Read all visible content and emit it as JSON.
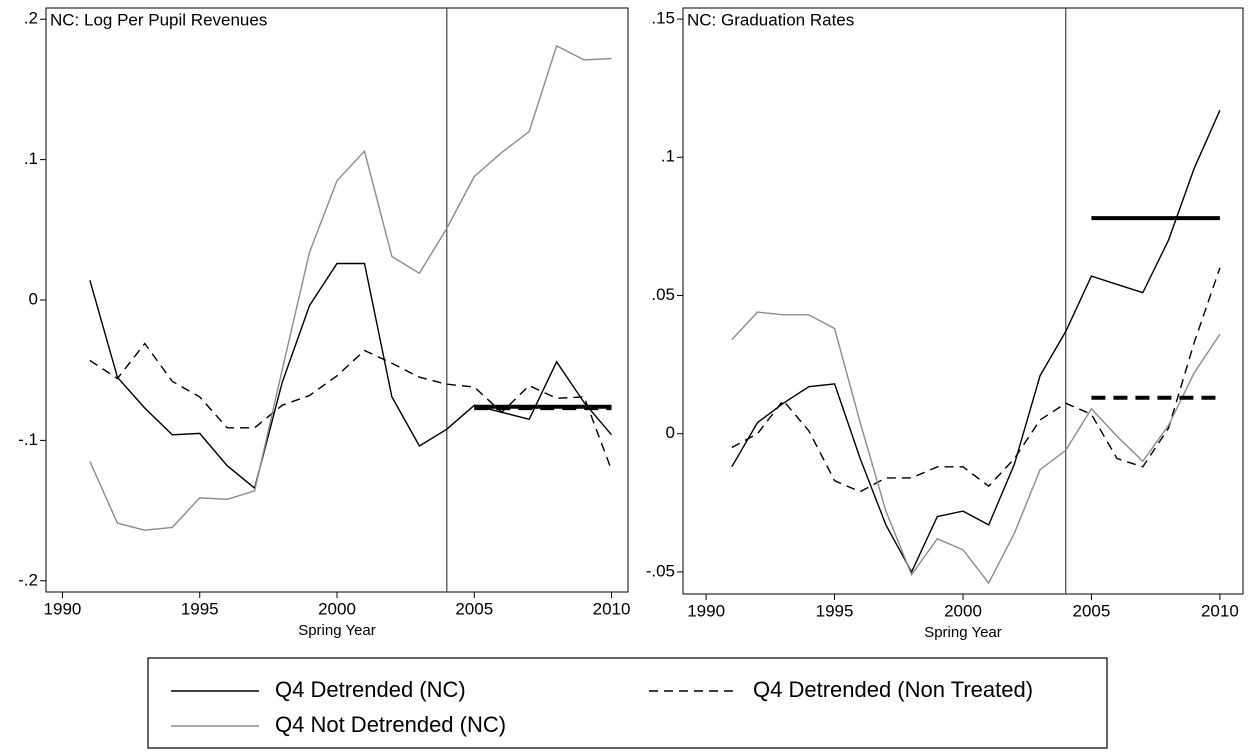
{
  "chart_data": [
    {
      "type": "line",
      "title": "NC: Log Per Pupil Revenues",
      "x_label": "Spring Year",
      "x": [
        1991,
        1992,
        1993,
        1994,
        1995,
        1996,
        1997,
        1998,
        1999,
        2000,
        2001,
        2002,
        2003,
        2004,
        2005,
        2006,
        2007,
        2008,
        2009,
        2010
      ],
      "series": [
        {
          "name": "Q4 Detrended (NC)",
          "color": "#000000",
          "dash": false,
          "values": [
            0.014,
            -0.055,
            -0.077,
            -0.096,
            -0.095,
            -0.118,
            -0.134,
            -0.059,
            -0.004,
            0.026,
            0.026,
            -0.069,
            -0.104,
            -0.092,
            -0.075,
            -0.08,
            -0.085,
            -0.044,
            -0.073,
            -0.096
          ]
        },
        {
          "name": "Q4 Detrended (Non Treated)",
          "color": "#000000",
          "dash": true,
          "values": [
            -0.043,
            -0.056,
            -0.031,
            -0.058,
            -0.069,
            -0.091,
            -0.091,
            -0.075,
            -0.068,
            -0.054,
            -0.036,
            -0.045,
            -0.055,
            -0.06,
            -0.062,
            -0.08,
            -0.061,
            -0.07,
            -0.069,
            -0.121
          ]
        },
        {
          "name": "Q4 Not Detrended (NC)",
          "color": "#8c8c8c",
          "dash": false,
          "values": [
            -0.115,
            -0.159,
            -0.164,
            -0.162,
            -0.141,
            -0.142,
            -0.136,
            -0.05,
            0.034,
            0.085,
            0.106,
            0.031,
            0.019,
            0.051,
            0.088,
            0.105,
            0.12,
            0.181,
            0.171,
            0.172
          ]
        }
      ],
      "hlines": [
        {
          "x": [
            2005,
            2010
          ],
          "y": -0.076,
          "dash": false
        },
        {
          "x": [
            2005,
            2010
          ],
          "y": -0.077,
          "dash": true
        }
      ],
      "vline": 2004,
      "xlim": [
        1989.4,
        2010.6
      ],
      "xticks": [
        1990,
        1995,
        2000,
        2005,
        2010
      ],
      "ylim": [
        -0.208,
        0.208
      ],
      "yticks": [
        {
          "value": -0.2,
          "label": "-.2"
        },
        {
          "value": -0.1,
          "label": "-.1"
        },
        0,
        {
          "value": 0.1,
          "label": ".1"
        },
        {
          "value": 0.2,
          "label": ".2"
        }
      ]
    },
    {
      "type": "line",
      "title": "NC: Graduation Rates",
      "x_label": "Spring Year",
      "x": [
        1991,
        1992,
        1993,
        1994,
        1995,
        1996,
        1997,
        1998,
        1999,
        2000,
        2001,
        2002,
        2003,
        2004,
        2005,
        2006,
        2007,
        2008,
        2009,
        2010
      ],
      "series": [
        {
          "color": "#000000",
          "dash": false,
          "values": [
            -0.012,
            0.004,
            0.011,
            0.017,
            0.018,
            -0.009,
            -0.033,
            -0.05,
            -0.03,
            -0.028,
            -0.033,
            -0.011,
            0.021,
            0.037,
            0.057,
            0.054,
            0.051,
            0.07,
            0.096,
            0.117
          ]
        },
        {
          "color": "#000000",
          "dash": true,
          "values": [
            -0.005,
            0,
            0.012,
            0.001,
            -0.017,
            -0.021,
            -0.016,
            -0.016,
            -0.012,
            -0.012,
            -0.019,
            -0.009,
            0.005,
            0.011,
            0.007,
            -0.009,
            -0.012,
            0.002,
            0.033,
            0.06
          ]
        },
        {
          "color": "#8c8c8c",
          "dash": false,
          "values": [
            0.034,
            0.044,
            0.043,
            0.043,
            0.038,
            0.004,
            -0.028,
            -0.051,
            -0.038,
            -0.042,
            -0.054,
            -0.036,
            -0.013,
            -0.006,
            0.009,
            -0.001,
            -0.01,
            0.003,
            0.022,
            0.036
          ]
        }
      ],
      "hlines": [
        {
          "x": [
            2005,
            2010
          ],
          "y": 0.078,
          "dash": false
        },
        {
          "x": [
            2005,
            2010
          ],
          "y": 0.013,
          "dash": true
        }
      ],
      "vline": 2004,
      "xlim": [
        1989.1,
        2010.9
      ],
      "xticks": [
        1990,
        1995,
        2000,
        2005,
        2010
      ],
      "ylim": [
        -0.058,
        0.154
      ],
      "yticks": [
        {
          "value": -0.05,
          "label": "-.05"
        },
        0,
        {
          "value": 0.05,
          "label": ".05"
        },
        {
          "value": 0.1,
          "label": ".1"
        },
        {
          "value": 0.15,
          "label": ".15"
        }
      ]
    }
  ]
}
